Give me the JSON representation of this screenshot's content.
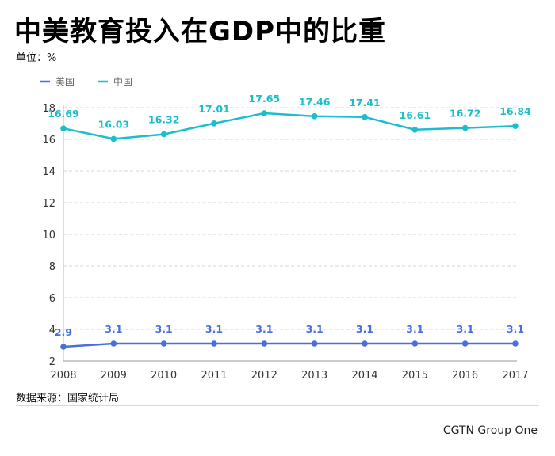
{
  "title": "中美教育投入在GDP中的比重",
  "unit_label": "单位：%",
  "source": "数据来源：国家统计局",
  "credit": "CGTN Group One",
  "chart_data": {
    "type": "line",
    "title": "中美教育投入在GDP中的比重",
    "x": [
      "2008",
      "2009",
      "2010",
      "2011",
      "2012",
      "2013",
      "2014",
      "2015",
      "2016",
      "2017"
    ],
    "yticks": [
      2,
      4,
      6,
      8,
      10,
      12,
      14,
      16,
      18
    ],
    "ylim": [
      2,
      18
    ],
    "grid": true,
    "legend_position": "top-left",
    "series": [
      {
        "name": "美国",
        "color": "#4a6fdc",
        "labels": [
          "2.9",
          "3.1",
          "3.1",
          "3.1",
          "3.1",
          "3.1",
          "3.1",
          "3.1",
          "3.1",
          "3.1"
        ],
        "values": [
          2.9,
          3.1,
          3.1,
          3.1,
          3.1,
          3.1,
          3.1,
          3.1,
          3.1,
          3.1
        ]
      },
      {
        "name": "中国",
        "color": "#1bbecd",
        "labels": [
          "16.69",
          "16.03",
          "16.32",
          "17.01",
          "17.65",
          "17.46",
          "17.41",
          "16.61",
          "16.72",
          "16.84"
        ],
        "values": [
          16.69,
          16.03,
          16.32,
          17.01,
          17.65,
          17.46,
          17.41,
          16.61,
          16.72,
          16.84
        ]
      }
    ]
  }
}
